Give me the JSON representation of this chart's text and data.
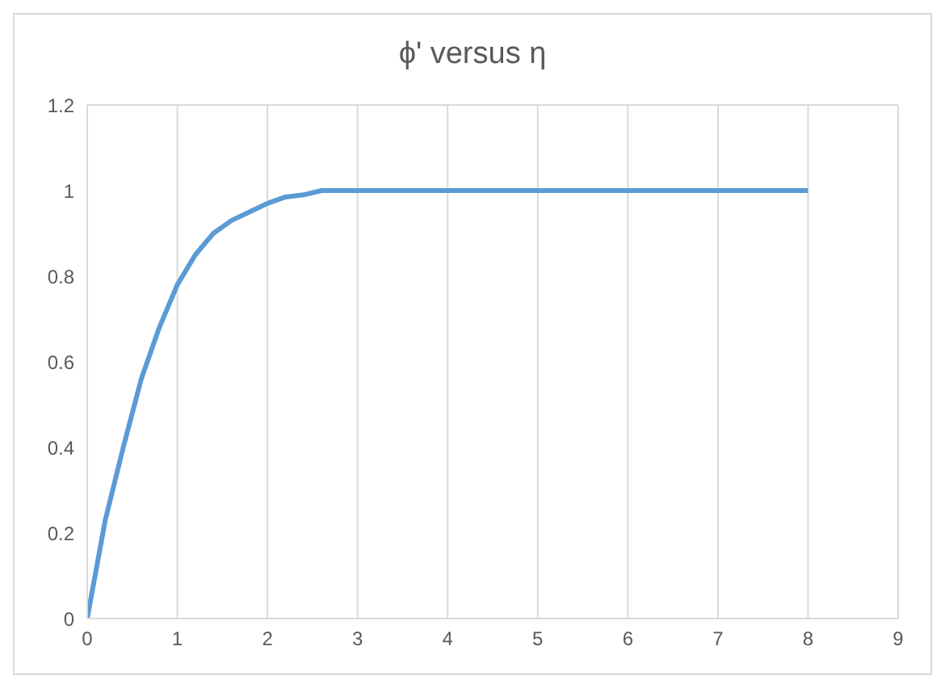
{
  "chart_data": {
    "type": "line",
    "title": "ϕ' versus η",
    "x": [
      0,
      0.2,
      0.4,
      0.6,
      0.8,
      1,
      1.2,
      1.4,
      1.6,
      1.8,
      2,
      2.2,
      2.4,
      2.6,
      3,
      4,
      5,
      6,
      7,
      8
    ],
    "series": [
      {
        "color": "#5b9bd5",
        "values": [
          0,
          0.23,
          0.4,
          0.56,
          0.68,
          0.78,
          0.85,
          0.9,
          0.93,
          0.95,
          0.97,
          0.985,
          0.99,
          1,
          1,
          1,
          1,
          1,
          1,
          1
        ]
      }
    ],
    "xlim": [
      0,
      9
    ],
    "xticks": [
      0,
      1,
      2,
      3,
      4,
      5,
      6,
      7,
      8,
      9
    ],
    "ylim": [
      0,
      1.2
    ],
    "yticks": [
      0,
      0.2,
      0.4,
      0.6,
      0.8,
      1,
      1.2
    ],
    "grid": true,
    "legend": false,
    "marker": "none",
    "line_style": "solid"
  }
}
